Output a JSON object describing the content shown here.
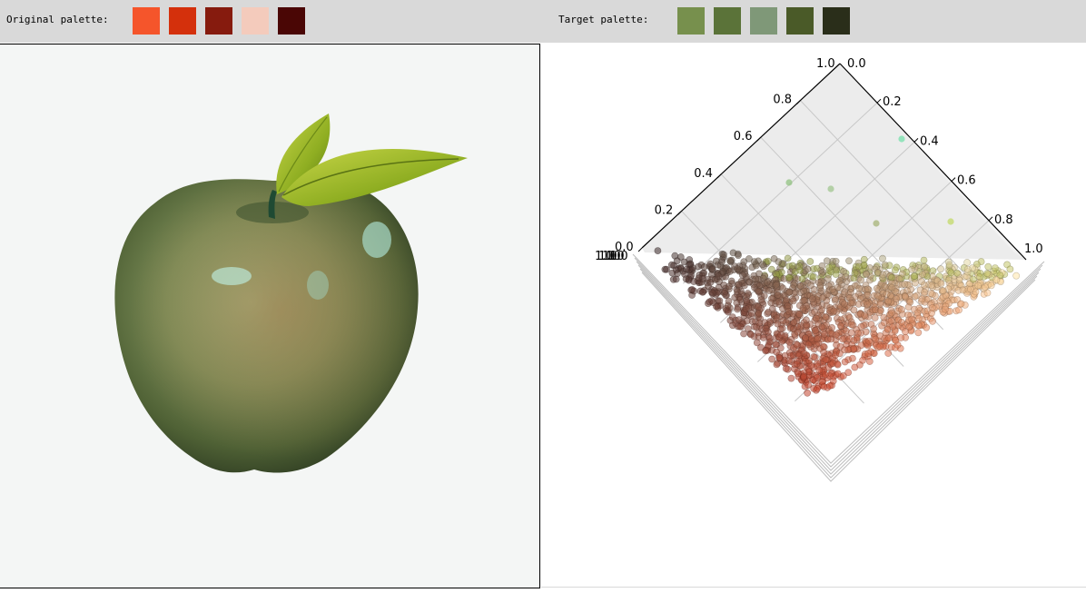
{
  "toolbar": {
    "original_label": "Original palette:",
    "target_label": "Target palette:",
    "original_colors": [
      "#f5552b",
      "#d4300c",
      "#861b0e",
      "#f4cbbc",
      "#4a0605"
    ],
    "target_colors": [
      "#77904d",
      "#5b7339",
      "#7f9878",
      "#4a5a28",
      "#2a2e1a"
    ]
  },
  "image": {
    "subject": "green apple with leaves",
    "background": "#f4f6f5"
  },
  "chart_data": {
    "type": "scatter3d",
    "axes": {
      "r": {
        "ticks": [
          "0.0",
          "0.2",
          "0.4",
          "0.6",
          "0.8",
          "1.0"
        ],
        "range": [
          0,
          1
        ]
      },
      "g": {
        "ticks": [
          "0.0",
          "0.2",
          "0.4",
          "0.6",
          "0.8",
          "1.0"
        ],
        "range": [
          0,
          1
        ]
      },
      "b": {
        "ticks": [
          "0.0",
          "0.2",
          "0.4",
          "0.6",
          "0.8",
          "1.0"
        ],
        "range": [
          0,
          1
        ]
      }
    },
    "outer_labels": {
      "top_left_end": "1.0",
      "top_right_start": "0.0",
      "right_end": "1.0",
      "left_stacked": "1.0"
    },
    "grid": true,
    "point_count": 1400,
    "description": "Pixel colors plotted in RGB space"
  }
}
